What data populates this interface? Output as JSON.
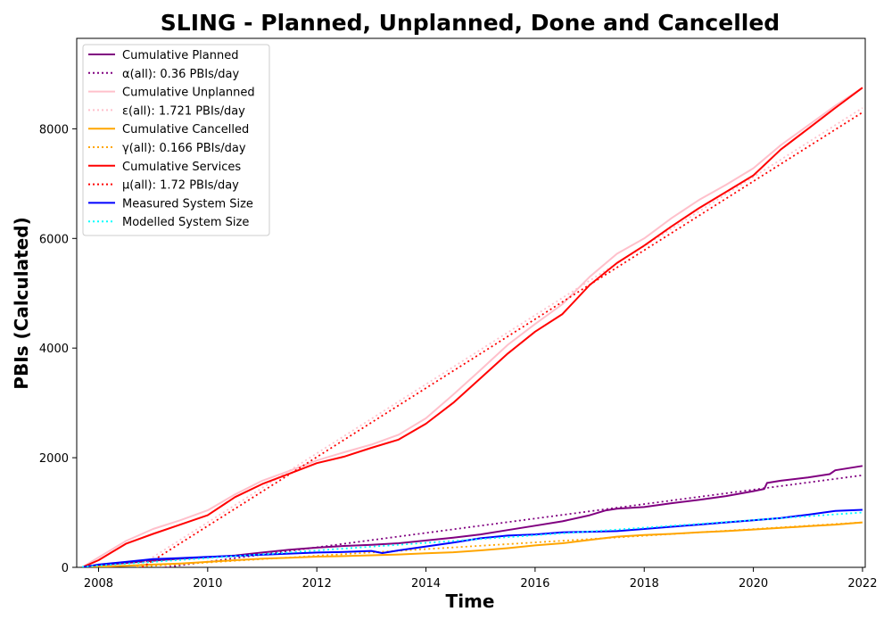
{
  "chart_data": {
    "type": "line",
    "title": "SLING - Planned, Unplanned, Done  and Cancelled",
    "xlabel": "Time",
    "ylabel": "PBIs (Calculated)",
    "xlim": [
      2007.6,
      2022.05
    ],
    "ylim": [
      0,
      9650
    ],
    "x_ticks": [
      2008,
      2010,
      2012,
      2014,
      2016,
      2018,
      2020,
      2022
    ],
    "y_ticks": [
      0,
      2000,
      4000,
      6000,
      8000
    ],
    "grid": false,
    "legend_position": "upper-left",
    "series": [
      {
        "name": "Cumulative Planned",
        "color": "#800080",
        "style": "solid",
        "x": [
          2007.7,
          2008.0,
          2008.5,
          2009.0,
          2009.5,
          2010.0,
          2010.5,
          2011.0,
          2011.5,
          2012.0,
          2012.5,
          2013.0,
          2013.5,
          2014.0,
          2014.5,
          2015.0,
          2015.5,
          2016.0,
          2016.5,
          2017.0,
          2017.3,
          2017.5,
          2018.0,
          2018.5,
          2019.0,
          2019.5,
          2020.0,
          2020.2,
          2020.25,
          2020.5,
          2021.0,
          2021.4,
          2021.5,
          2022.0
        ],
        "values": [
          0,
          40,
          80,
          120,
          160,
          185,
          215,
          270,
          320,
          360,
          390,
          410,
          440,
          490,
          540,
          600,
          680,
          760,
          840,
          950,
          1040,
          1070,
          1100,
          1170,
          1230,
          1300,
          1390,
          1430,
          1540,
          1580,
          1640,
          1700,
          1770,
          1850
        ]
      },
      {
        "name": "α(all): 0.36 PBIs/day",
        "color": "#800080",
        "style": "dotted",
        "x": [
          2007.7,
          2022.0
        ],
        "values": [
          -200,
          1680
        ]
      },
      {
        "name": "Cumulative Unplanned",
        "color": "#ffc0cb",
        "style": "solid",
        "x": [
          2007.7,
          2008.0,
          2008.5,
          2009.0,
          2009.5,
          2010.0,
          2010.5,
          2011.0,
          2011.5,
          2012.0,
          2012.5,
          2013.0,
          2013.5,
          2014.0,
          2014.5,
          2015.0,
          2015.5,
          2016.0,
          2016.5,
          2017.0,
          2017.5,
          2018.0,
          2018.5,
          2019.0,
          2019.5,
          2020.0,
          2020.5,
          2021.0,
          2021.5,
          2022.0
        ],
        "values": [
          0,
          180,
          480,
          700,
          860,
          1040,
          1330,
          1580,
          1760,
          1950,
          2100,
          2240,
          2420,
          2720,
          3150,
          3600,
          4060,
          4440,
          4800,
          5300,
          5720,
          6000,
          6370,
          6700,
          6980,
          7280,
          7700,
          8060,
          8420,
          8750
        ]
      },
      {
        "name": "ε(all): 1.721 PBIs/day",
        "color": "#ffc0cb",
        "style": "dotted",
        "x": [
          2008.7,
          2022.0
        ],
        "values": [
          0,
          8380
        ]
      },
      {
        "name": "Cumulative Cancelled",
        "color": "#ffa500",
        "style": "solid",
        "x": [
          2007.7,
          2008.0,
          2008.5,
          2009.0,
          2009.5,
          2010.0,
          2010.5,
          2011.0,
          2011.5,
          2012.0,
          2012.5,
          2013.0,
          2013.5,
          2014.0,
          2014.5,
          2015.0,
          2015.5,
          2016.0,
          2016.5,
          2017.0,
          2017.5,
          2018.0,
          2018.5,
          2019.0,
          2019.5,
          2020.0,
          2020.5,
          2021.0,
          2021.5,
          2022.0
        ],
        "values": [
          0,
          10,
          30,
          50,
          70,
          100,
          130,
          160,
          175,
          195,
          205,
          220,
          235,
          255,
          275,
          310,
          350,
          400,
          440,
          500,
          560,
          590,
          610,
          640,
          660,
          690,
          720,
          750,
          780,
          820
        ]
      },
      {
        "name": "γ(all): 0.166 PBIs/day",
        "color": "#ffa500",
        "style": "dotted",
        "x": [
          2008.7,
          2022.0
        ],
        "values": [
          10,
          820
        ]
      },
      {
        "name": "Cumulative Services",
        "color": "#ff0000",
        "style": "solid",
        "x": [
          2007.7,
          2008.0,
          2008.5,
          2009.0,
          2009.5,
          2010.0,
          2010.5,
          2011.0,
          2011.5,
          2012.0,
          2012.5,
          2013.0,
          2013.5,
          2014.0,
          2014.5,
          2015.0,
          2015.5,
          2016.0,
          2016.5,
          2017.0,
          2017.5,
          2018.0,
          2018.5,
          2019.0,
          2019.5,
          2020.0,
          2020.5,
          2021.0,
          2021.5,
          2022.0
        ],
        "values": [
          0,
          130,
          430,
          610,
          780,
          950,
          1280,
          1520,
          1710,
          1900,
          2020,
          2180,
          2330,
          2620,
          3000,
          3450,
          3900,
          4300,
          4620,
          5150,
          5550,
          5870,
          6220,
          6550,
          6850,
          7150,
          7620,
          8000,
          8380,
          8750
        ]
      },
      {
        "name": "μ(all): 1.72 PBIs/day",
        "color": "#ff0000",
        "style": "dotted",
        "x": [
          2008.8,
          2022.0
        ],
        "values": [
          0,
          8300
        ]
      },
      {
        "name": "Measured System Size",
        "color": "#0000ff",
        "style": "solid",
        "x": [
          2007.7,
          2008.0,
          2008.5,
          2009.0,
          2009.5,
          2010.0,
          2010.5,
          2011.0,
          2011.5,
          2012.0,
          2012.5,
          2013.0,
          2013.2,
          2013.5,
          2014.0,
          2014.5,
          2015.0,
          2015.5,
          2016.0,
          2016.5,
          2017.0,
          2017.5,
          2018.0,
          2018.5,
          2019.0,
          2019.5,
          2020.0,
          2020.5,
          2021.0,
          2021.5,
          2022.0
        ],
        "values": [
          0,
          50,
          100,
          150,
          170,
          190,
          210,
          230,
          250,
          270,
          280,
          300,
          260,
          310,
          380,
          450,
          530,
          580,
          600,
          640,
          650,
          660,
          700,
          740,
          780,
          820,
          860,
          900,
          960,
          1030,
          1050
        ]
      },
      {
        "name": "Modelled System Size",
        "color": "#00ffff",
        "style": "dotted",
        "x": [
          2007.7,
          2022.0
        ],
        "values": [
          10,
          1000
        ]
      }
    ]
  }
}
